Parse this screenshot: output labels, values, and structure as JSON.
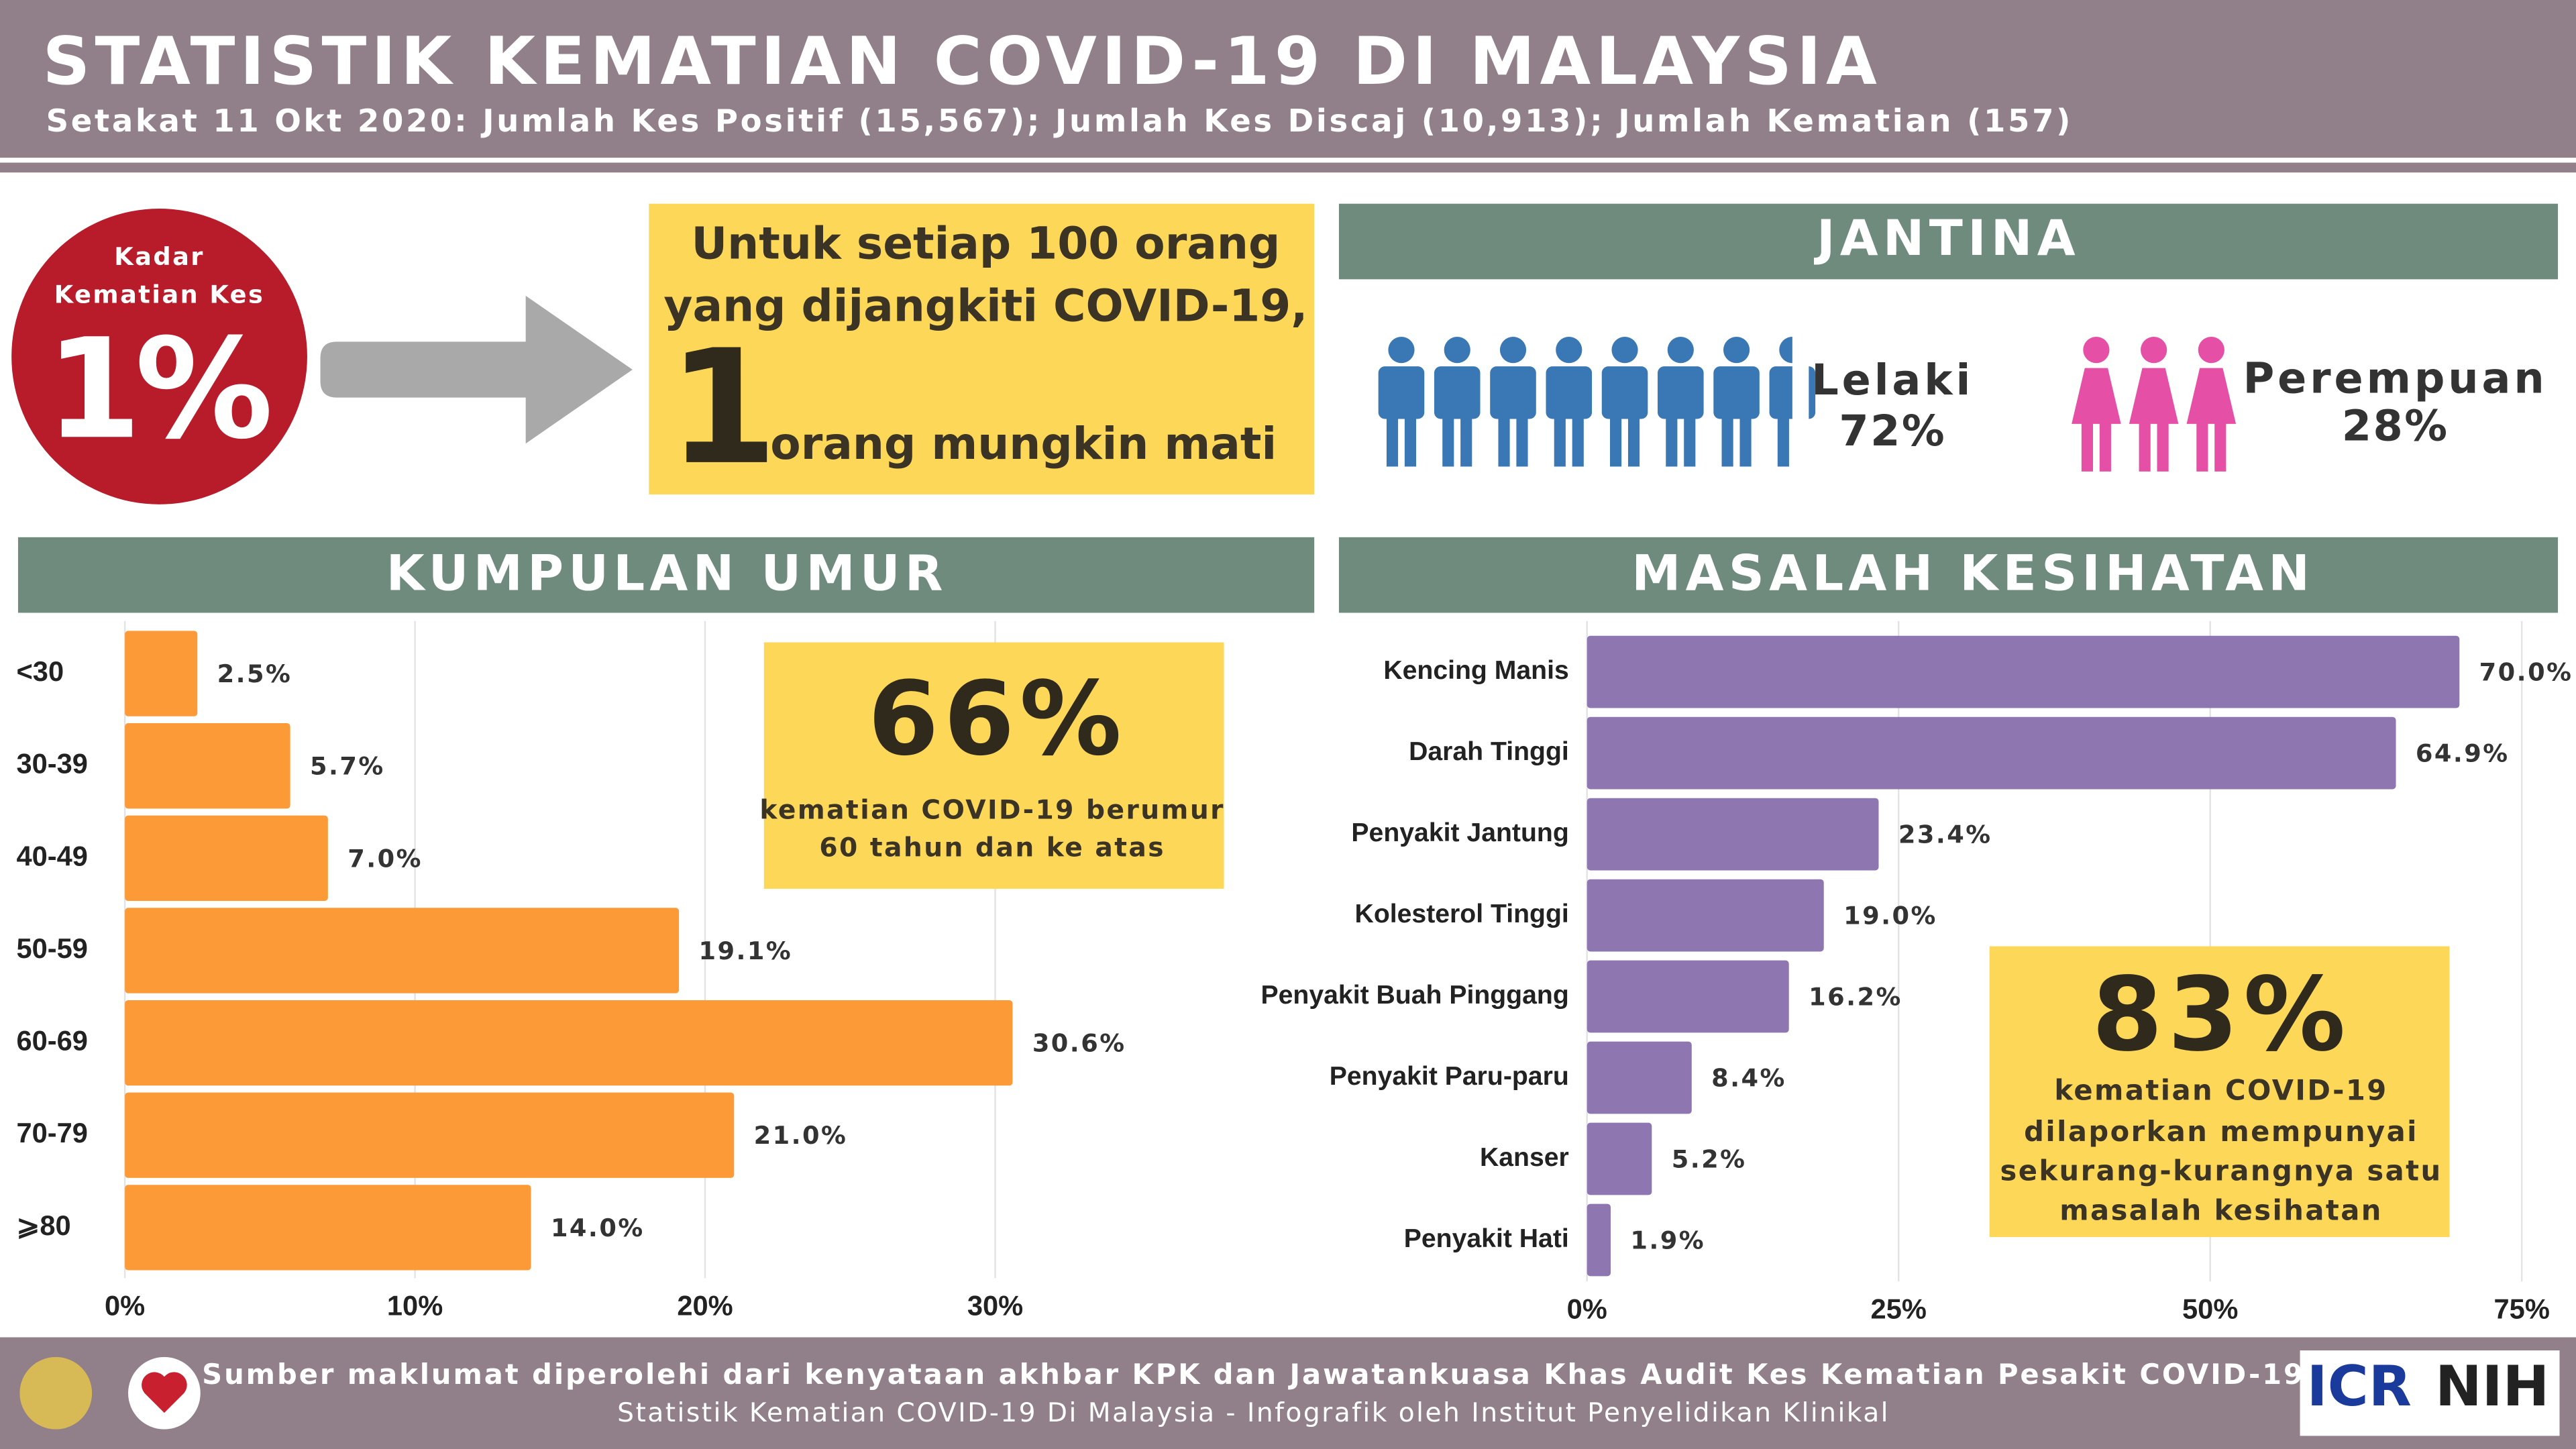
{
  "header": {
    "title": "STATISTIK KEMATIAN COVID-19 DI MALAYSIA",
    "subtitle": "Setakat 11 Okt 2020: Jumlah Kes Positif (15,567); Jumlah Kes Discaj (10,913); Jumlah Kematian (157)"
  },
  "fatality": {
    "label": [
      "Kadar",
      "Kematian Kes"
    ],
    "value": "1%",
    "lines": [
      "Untuk setiap 100 orang",
      "yang dijangkiti COVID-19,"
    ],
    "big": "1",
    "last": "orang mungkin mati"
  },
  "gender": {
    "title": "JANTINA",
    "items": [
      {
        "name": "Lelaki",
        "value": "72%"
      },
      {
        "name": "Perempuan",
        "value": "28%"
      }
    ]
  },
  "chart_data": [
    {
      "type": "bar",
      "orientation": "horizontal",
      "title": "KUMPULAN UMUR",
      "categories": [
        "<30",
        "30-39",
        "40-49",
        "50-59",
        "60-69",
        "70-79",
        "⩾80"
      ],
      "values": [
        2.5,
        5.7,
        7.0,
        19.1,
        30.6,
        21.0,
        14.0
      ],
      "value_labels": [
        "2.5%",
        "5.7%",
        "7.0%",
        "19.1%",
        "30.6%",
        "21.0%",
        "14.0%"
      ],
      "color": "#fd9a38",
      "xlim": [
        0,
        41
      ],
      "xticks": [
        {
          "value": 0,
          "label": "0%"
        },
        {
          "value": 10,
          "label": "10%"
        },
        {
          "value": 20,
          "label": "20%"
        },
        {
          "value": 30,
          "label": "30%"
        }
      ],
      "grid": true,
      "callout": {
        "value": "66%",
        "text": [
          "kematian COVID-19 berumur",
          "60 tahun dan ke atas"
        ]
      }
    },
    {
      "type": "bar",
      "orientation": "horizontal",
      "title": "MASALAH KESIHATAN",
      "categories": [
        "Kencing Manis",
        "Darah Tinggi",
        "Penyakit Jantung",
        "Kolesterol Tinggi",
        "Penyakit Buah Pinggang",
        "Penyakit Paru-paru",
        "Kanser",
        "Penyakit Hati"
      ],
      "values": [
        70.0,
        64.9,
        23.4,
        19.0,
        16.2,
        8.4,
        5.2,
        1.9
      ],
      "value_labels": [
        "70.0%",
        "64.9%",
        "23.4%",
        "19.0%",
        "16.2%",
        "8.4%",
        "5.2%",
        "1.9%"
      ],
      "color": "#8e77b0",
      "xlim": [
        0,
        75
      ],
      "xticks": [
        {
          "value": 0,
          "label": "0%"
        },
        {
          "value": 25,
          "label": "25%"
        },
        {
          "value": 50,
          "label": "50%"
        },
        {
          "value": 75,
          "label": "75%"
        }
      ],
      "grid": true,
      "callout": {
        "value": "83%",
        "text": [
          "kematian COVID-19",
          "dilaporkan mempunyai",
          "sekurang-kurangnya satu",
          "masalah kesihatan"
        ]
      }
    }
  ],
  "footer": {
    "source": "Sumber maklumat diperolehi dari kenyataan akhbar KPK dan Jawatankuasa Khas Audit Kes Kematian Pesakit COVID-19",
    "credit": "Statistik Kematian COVID-19 Di Malaysia -  Infografik oleh Institut Penyelidikan Klinikal",
    "logos": [
      "ICR",
      "NIH"
    ]
  }
}
